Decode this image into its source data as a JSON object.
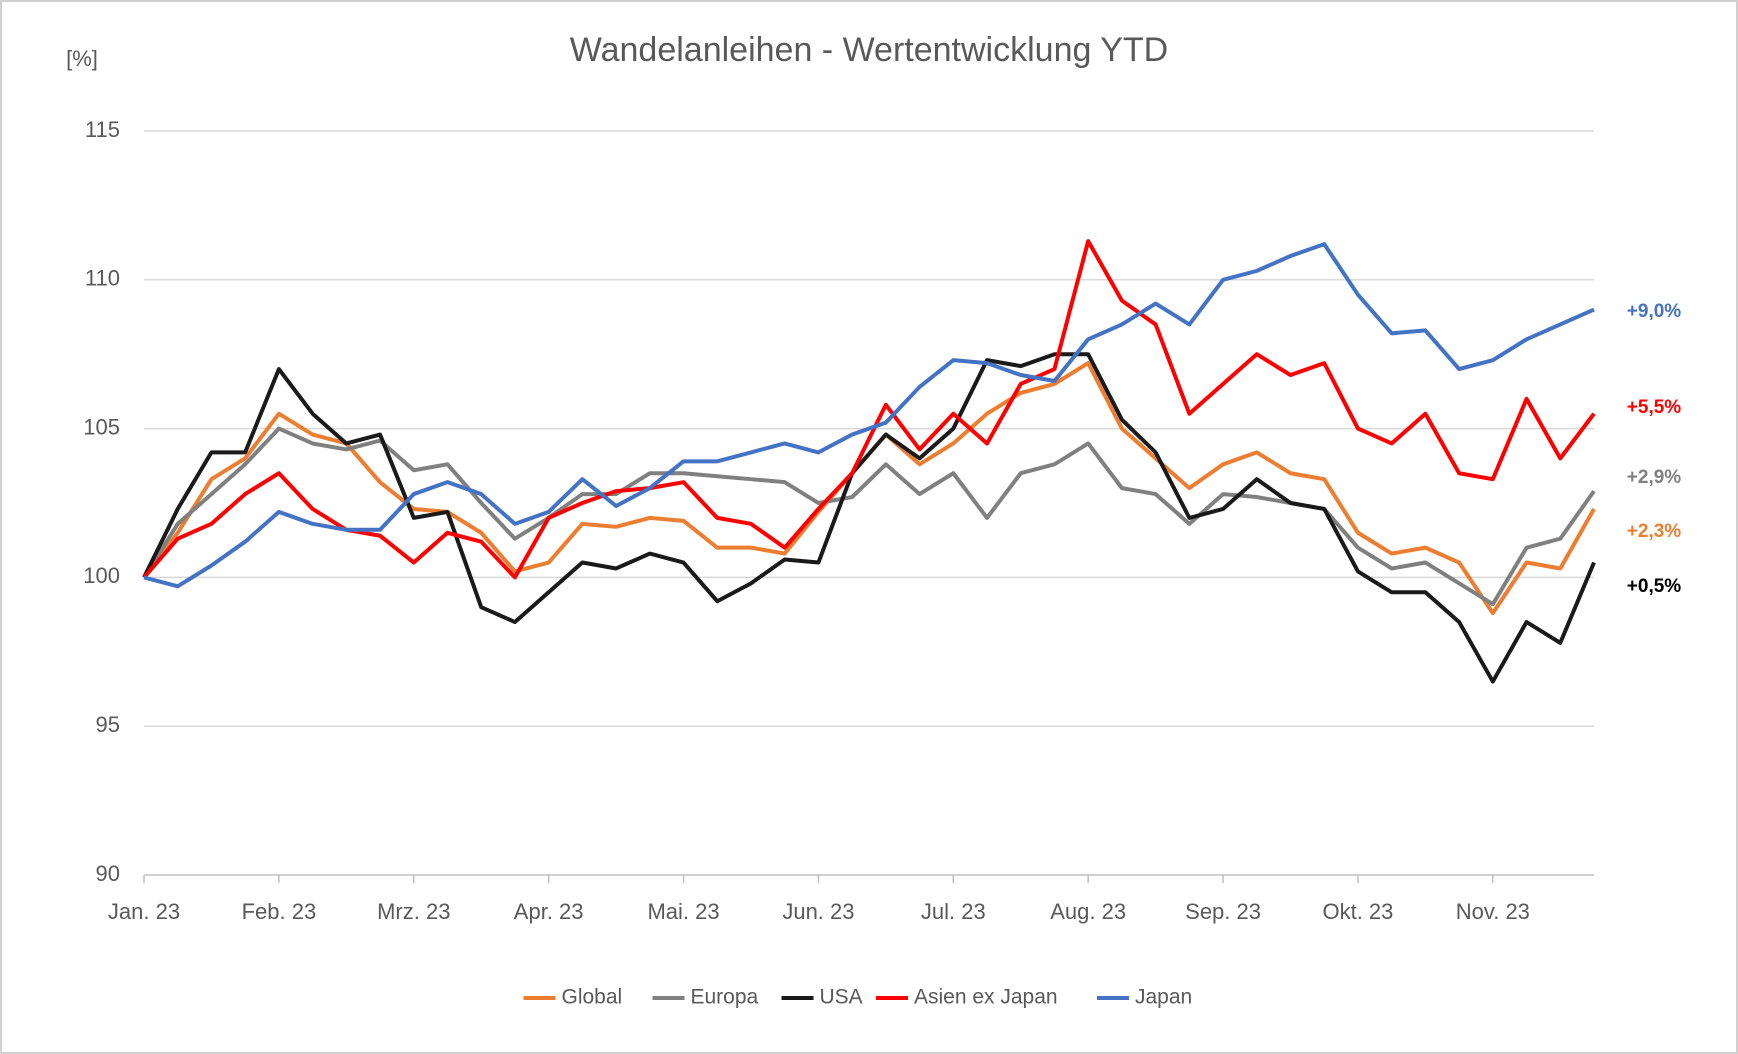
{
  "chart_data": {
    "type": "line",
    "title": "Wandelanleihen - Wertentwicklung YTD",
    "ylabel": "[%]",
    "categories": [
      "Jan. 23",
      null,
      null,
      null,
      "Feb. 23",
      null,
      null,
      null,
      "Mrz. 23",
      null,
      null,
      null,
      "Apr. 23",
      null,
      null,
      null,
      "Mai. 23",
      null,
      null,
      null,
      "Jun. 23",
      null,
      null,
      null,
      "Jul. 23",
      null,
      null,
      null,
      "Aug. 23",
      null,
      null,
      null,
      "Sep. 23",
      null,
      null,
      null,
      "Okt. 23",
      null,
      null,
      null,
      "Nov. 23",
      null,
      null,
      null
    ],
    "ylim": [
      90,
      115
    ],
    "yticks": [
      90,
      95,
      100,
      105,
      110,
      115
    ],
    "grid": true,
    "legend": "bottom",
    "series": [
      {
        "name": "Global",
        "color": "#ed7d31",
        "values": [
          100,
          101.5,
          103.3,
          104,
          105.5,
          104.8,
          104.5,
          103.2,
          102.3,
          102.2,
          101.5,
          100.2,
          100.5,
          101.8,
          101.7,
          102,
          101.9,
          101,
          101,
          100.8,
          102.2,
          103.5,
          104.8,
          103.8,
          104.5,
          105.5,
          106.2,
          106.5,
          107.2,
          105,
          104,
          103,
          103.8,
          104.2,
          103.5,
          103.3,
          101.5,
          100.8,
          101,
          100.5,
          98.8,
          100.5,
          100.3,
          102.3
        ]
      },
      {
        "name": "Europa",
        "color": "#808080",
        "values": [
          100,
          101.8,
          102.8,
          103.8,
          105,
          104.5,
          104.3,
          104.6,
          103.6,
          103.8,
          102.5,
          101.3,
          102,
          102.8,
          102.8,
          103.5,
          103.5,
          103.4,
          103.3,
          103.2,
          102.5,
          102.7,
          103.8,
          102.8,
          103.5,
          102,
          103.5,
          103.8,
          104.5,
          103,
          102.8,
          101.8,
          102.8,
          102.7,
          102.5,
          102.3,
          101,
          100.3,
          100.5,
          99.8,
          99.1,
          101,
          101.3,
          102.9
        ]
      },
      {
        "name": "USA",
        "color": "#1a1a1a",
        "values": [
          100,
          102.3,
          104.2,
          104.2,
          107,
          105.5,
          104.5,
          104.8,
          102,
          102.2,
          99,
          98.5,
          99.5,
          100.5,
          100.3,
          100.8,
          100.5,
          99.2,
          99.8,
          100.6,
          100.5,
          103.5,
          104.8,
          104,
          105,
          107.3,
          107.1,
          107.5,
          107.5,
          105.3,
          104.2,
          102,
          102.3,
          103.3,
          102.5,
          102.3,
          100.2,
          99.5,
          99.5,
          98.5,
          96.5,
          98.5,
          97.8,
          100.5
        ]
      },
      {
        "name": "Asien ex Japan",
        "color": "#ff0000",
        "values": [
          100,
          101.3,
          101.8,
          102.8,
          103.5,
          102.3,
          101.6,
          101.4,
          100.5,
          101.5,
          101.2,
          100,
          102,
          102.5,
          102.9,
          103,
          103.2,
          102,
          101.8,
          101,
          102.3,
          103.5,
          105.8,
          104.3,
          105.5,
          104.5,
          106.5,
          107,
          111.3,
          109.3,
          108.5,
          105.5,
          106.5,
          107.5,
          106.8,
          107.2,
          105,
          104.5,
          105.5,
          103.5,
          103.3,
          106,
          104,
          105.5
        ]
      },
      {
        "name": "Japan",
        "color": "#4472c4",
        "values": [
          100,
          99.7,
          100.4,
          101.2,
          102.2,
          101.8,
          101.6,
          101.6,
          102.8,
          103.2,
          102.8,
          101.8,
          102.2,
          103.3,
          102.4,
          103,
          103.9,
          103.9,
          104.2,
          104.5,
          104.2,
          104.8,
          105.2,
          106.4,
          107.3,
          107.2,
          106.8,
          106.6,
          108,
          108.5,
          109.2,
          108.5,
          110,
          110.3,
          110.8,
          111.2,
          109.5,
          108.2,
          108.3,
          107,
          107.3,
          108,
          108.5,
          109
        ]
      }
    ],
    "annotations": [
      {
        "text": "+9,0%",
        "color": "#4472c4"
      },
      {
        "text": "+5,5%",
        "color": "#ff0000"
      },
      {
        "text": "+2,9%",
        "color": "#808080"
      },
      {
        "text": "+2,3%",
        "color": "#ed7d31"
      },
      {
        "text": "+0,5%",
        "color": "#000000"
      }
    ]
  }
}
